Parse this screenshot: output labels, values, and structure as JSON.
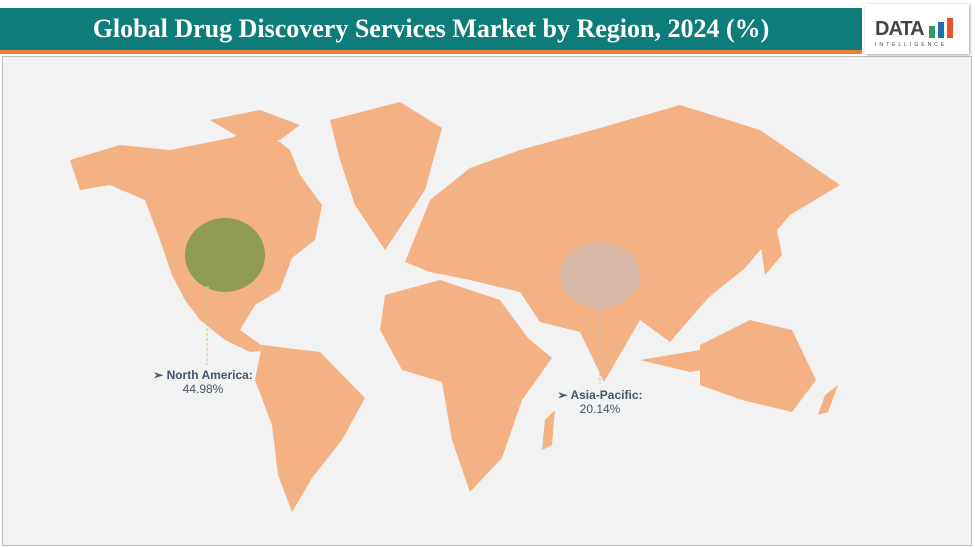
{
  "header": {
    "title": "Global Drug Discovery Services Market by Region, 2024 (%)"
  },
  "logo": {
    "text": "DATA",
    "subtext": "INTELLIGENCE"
  },
  "colors": {
    "header": "#0e7c7b",
    "accent": "#ed7d31",
    "land": "#f4b183",
    "north_america_bubble": "#8f9a52",
    "asia_pacific_bubble": "#d9b8a8"
  },
  "regions": [
    {
      "name": "North America:",
      "value": "44.98%"
    },
    {
      "name": "Asia-Pacific:",
      "value": "20.14%"
    }
  ]
}
